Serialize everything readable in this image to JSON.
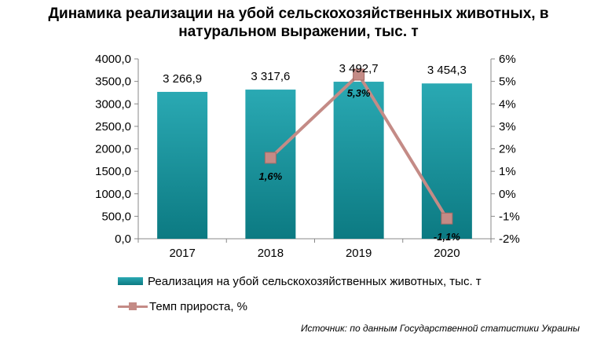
{
  "title": "Динамика реализации на убой сельскохозяйственных животных, в натуральном выражении, тыс. т",
  "source": "Источник: по данным Государственной статистики Украины",
  "chart_data": {
    "type": "bar",
    "categories": [
      "2017",
      "2018",
      "2019",
      "2020"
    ],
    "series": [
      {
        "name": "Реализация на убой сельскохозяйственных животных, тыс. т",
        "type": "bar",
        "axis": "left",
        "values": [
          3266.9,
          3317.6,
          3492.7,
          3454.3
        ],
        "labels": [
          "3 266,9",
          "3 317,6",
          "3 492,7",
          "3 454,3"
        ],
        "color": "#1a97a1"
      },
      {
        "name": "Темп прироста, %",
        "type": "line",
        "axis": "right",
        "values": [
          null,
          1.6,
          5.3,
          -1.1
        ],
        "labels": [
          "",
          "1,6%",
          "5,3%",
          "-1,1%"
        ],
        "color": "#c48b86"
      }
    ],
    "y_left": {
      "ylim": [
        0,
        4000
      ],
      "ticks": [
        0,
        500,
        1000,
        1500,
        2000,
        2500,
        3000,
        3500,
        4000
      ],
      "tick_labels": [
        "0,0",
        "500,0",
        "1000,0",
        "1500,0",
        "2000,0",
        "2500,0",
        "3000,0",
        "3500,0",
        "4000,0"
      ]
    },
    "y_right": {
      "ylim": [
        -2,
        6
      ],
      "ticks": [
        -2,
        -1,
        0,
        1,
        2,
        3,
        4,
        5,
        6
      ],
      "tick_labels": [
        "-2%",
        "-1%",
        "0%",
        "1%",
        "2%",
        "3%",
        "4%",
        "5%",
        "6%"
      ]
    },
    "grid": false,
    "legend_position": "bottom"
  }
}
